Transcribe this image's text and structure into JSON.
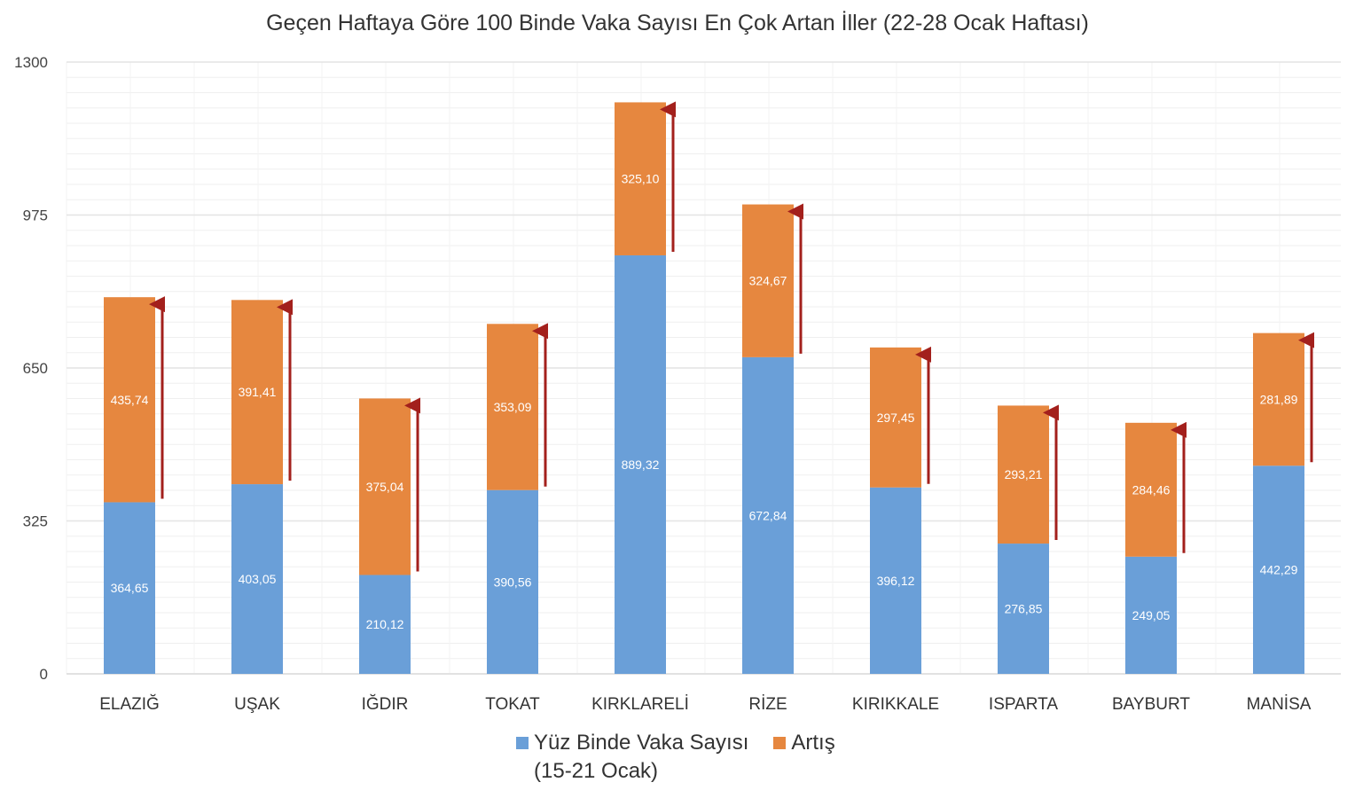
{
  "chart_data": {
    "type": "bar",
    "stacked": true,
    "title": "Geçen Haftaya Göre 100 Binde Vaka Sayısı En Çok Artan İller (22-28 Ocak Haftası)",
    "xlabel": "",
    "ylabel": "",
    "ylim": [
      0,
      1300
    ],
    "yticks": [
      "0",
      "325",
      "650",
      "975",
      "1300"
    ],
    "grid": true,
    "legend_position": "bottom",
    "categories": [
      "ELAZIĞ",
      "UŞAK",
      "IĞDIR",
      "TOKAT",
      "KIRKLARELİ",
      "RİZE",
      "KIRIKKALE",
      "ISPARTA",
      "BAYBURT",
      "MANİSA"
    ],
    "series": [
      {
        "name": "Yüz Binde Vaka Sayısı (15-21 Ocak)",
        "color": "#6a9fd8",
        "values": [
          364.65,
          403.05,
          210.12,
          390.56,
          889.32,
          672.84,
          396.12,
          276.85,
          249.05,
          442.29
        ],
        "labels": [
          "364,65",
          "403,05",
          "210,12",
          "390,56",
          "889,32",
          "672,84",
          "396,12",
          "276,85",
          "249,05",
          "442,29"
        ]
      },
      {
        "name": "Artış",
        "color": "#e6873f",
        "values": [
          435.74,
          391.41,
          375.04,
          353.09,
          325.1,
          324.67,
          297.45,
          293.21,
          284.46,
          281.89
        ],
        "labels": [
          "435,74",
          "391,41",
          "375,04",
          "353,09",
          "325,10",
          "324,67",
          "297,45",
          "293,21",
          "284,46",
          "281,89"
        ]
      }
    ],
    "legend": {
      "item1_line1": "Yüz Binde Vaka Sayısı",
      "item1_line2": "(15-21 Ocak)",
      "item2": "Artış"
    },
    "arrow_color": "#a3201c"
  }
}
